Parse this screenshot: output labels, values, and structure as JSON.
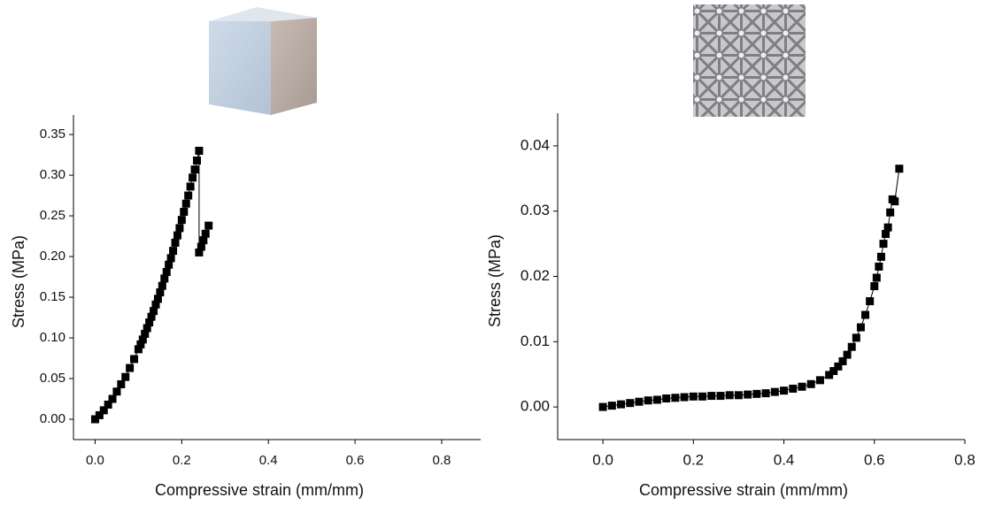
{
  "chart_data": [
    {
      "type": "scatter",
      "marker": "square",
      "color": "#000000",
      "x_label": "Compressive strain (mm/mm)",
      "y_label": "Stress (MPa)",
      "x": [
        0,
        0.01,
        0.02,
        0.03,
        0.04,
        0.05,
        0.06,
        0.07,
        0.08,
        0.09,
        0.1,
        0.105,
        0.11,
        0.115,
        0.12,
        0.125,
        0.13,
        0.135,
        0.14,
        0.145,
        0.15,
        0.155,
        0.16,
        0.165,
        0.17,
        0.175,
        0.18,
        0.185,
        0.19,
        0.195,
        0.2,
        0.205,
        0.21,
        0.215,
        0.22,
        0.225,
        0.23,
        0.235,
        0.24,
        0.24,
        0.245,
        0.25,
        0.255,
        0.262
      ],
      "values": [
        0,
        0.005,
        0.011,
        0.018,
        0.025,
        0.034,
        0.043,
        0.052,
        0.063,
        0.074,
        0.086,
        0.092,
        0.098,
        0.105,
        0.112,
        0.119,
        0.126,
        0.133,
        0.141,
        0.148,
        0.156,
        0.164,
        0.173,
        0.181,
        0.19,
        0.198,
        0.207,
        0.217,
        0.226,
        0.235,
        0.245,
        0.255,
        0.265,
        0.275,
        0.286,
        0.297,
        0.307,
        0.318,
        0.33,
        0.205,
        0.212,
        0.22,
        0.228,
        0.238
      ],
      "xlim": [
        -0.05,
        0.89
      ],
      "xticks": [
        {
          "value": 0,
          "label": "0.0"
        },
        0.2,
        0.4,
        0.6,
        0.8
      ],
      "ylim": [
        -0.025,
        0.374
      ],
      "yticks": [
        {
          "value": 0,
          "label": "0.00"
        },
        0.05,
        {
          "value": 0.1,
          "label": "0.10"
        },
        0.15,
        {
          "value": 0.2,
          "label": "0.20"
        },
        0.25,
        {
          "value": 0.3,
          "label": "0.30"
        },
        0.35
      ]
    },
    {
      "type": "scatter",
      "marker": "square",
      "color": "#000000",
      "x_label": "Compressive strain (mm/mm)",
      "y_label": "Stress (MPa)",
      "x": [
        0,
        0.02,
        0.04,
        0.06,
        0.08,
        0.1,
        0.12,
        0.14,
        0.16,
        0.18,
        0.2,
        0.22,
        0.24,
        0.26,
        0.28,
        0.3,
        0.32,
        0.34,
        0.36,
        0.38,
        0.4,
        0.42,
        0.44,
        0.46,
        0.48,
        0.5,
        0.51,
        0.52,
        0.53,
        0.54,
        0.55,
        0.56,
        0.57,
        0.58,
        0.59,
        0.6,
        0.605,
        0.61,
        0.615,
        0.62,
        0.625,
        0.63,
        0.635,
        0.64,
        0.645,
        0.655
      ],
      "values": [
        0,
        0.0002,
        0.0004,
        0.0006,
        0.0008,
        0.001,
        0.0011,
        0.0013,
        0.0014,
        0.0015,
        0.0016,
        0.0016,
        0.0017,
        0.0017,
        0.0018,
        0.0018,
        0.0019,
        0.002,
        0.0021,
        0.0023,
        0.0025,
        0.0028,
        0.0031,
        0.0035,
        0.0041,
        0.0049,
        0.0055,
        0.0062,
        0.007,
        0.008,
        0.0092,
        0.0106,
        0.0122,
        0.0141,
        0.0162,
        0.0185,
        0.0198,
        0.0215,
        0.023,
        0.025,
        0.0265,
        0.0275,
        0.0298,
        0.0318,
        0.0315,
        0.0365
      ],
      "xlim": [
        -0.1,
        0.8
      ],
      "xticks": [
        {
          "value": 0,
          "label": "0.0"
        },
        0.2,
        0.4,
        0.6,
        0.8
      ],
      "ylim": [
        -0.005,
        0.045
      ],
      "yticks": [
        {
          "value": 0,
          "label": "0.00"
        },
        0.01,
        0.02,
        0.03,
        0.04
      ]
    }
  ]
}
